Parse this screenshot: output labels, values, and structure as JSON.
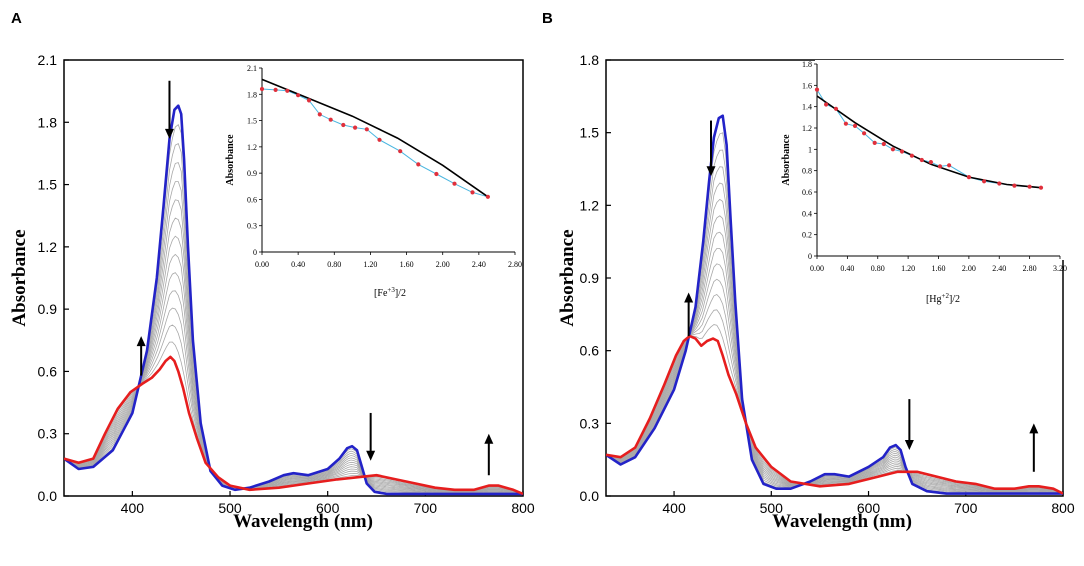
{
  "chart_data": [
    {
      "type": "line",
      "panel_label": "A",
      "xlabel": "Wavelength (nm)",
      "ylabel": "Absorbance",
      "xlim": [
        330,
        800
      ],
      "ylim": [
        0,
        2.1
      ],
      "x_ticks": [
        400,
        500,
        600,
        700,
        800
      ],
      "y_ticks": [
        0.0,
        0.3,
        0.6,
        0.9,
        1.2,
        1.5,
        1.8,
        2.1
      ],
      "x_tick_labels": [
        "400",
        "500",
        "600",
        "700",
        "800"
      ],
      "y_tick_labels": [
        "0.0",
        "0.3",
        "0.6",
        "0.9",
        "1.2",
        "1.5",
        "1.8",
        "2.1"
      ],
      "series": [
        {
          "name": "initial",
          "color": "#2323c8",
          "x": [
            330,
            345,
            360,
            380,
            400,
            415,
            425,
            432,
            438,
            443,
            447,
            450,
            453,
            457,
            462,
            470,
            480,
            492,
            505,
            520,
            540,
            555,
            565,
            580,
            600,
            612,
            620,
            625,
            630,
            635,
            640,
            648,
            660,
            680,
            700,
            720,
            740,
            760,
            780,
            800
          ],
          "y": [
            0.18,
            0.13,
            0.14,
            0.22,
            0.4,
            0.7,
            1.05,
            1.4,
            1.72,
            1.86,
            1.88,
            1.84,
            1.62,
            1.2,
            0.75,
            0.35,
            0.12,
            0.05,
            0.03,
            0.04,
            0.07,
            0.1,
            0.11,
            0.1,
            0.13,
            0.18,
            0.23,
            0.24,
            0.22,
            0.14,
            0.06,
            0.02,
            0.01,
            0.01,
            0.01,
            0.01,
            0.01,
            0.01,
            0.01,
            0.01
          ]
        },
        {
          "name": "final",
          "color": "#e61e1e",
          "x": [
            330,
            345,
            360,
            372,
            385,
            398,
            410,
            420,
            428,
            434,
            439,
            443,
            447,
            452,
            458,
            466,
            475,
            488,
            500,
            520,
            550,
            580,
            610,
            630,
            650,
            670,
            690,
            710,
            730,
            750,
            765,
            775,
            790,
            800
          ],
          "y": [
            0.18,
            0.16,
            0.18,
            0.3,
            0.42,
            0.5,
            0.54,
            0.57,
            0.61,
            0.65,
            0.67,
            0.65,
            0.6,
            0.52,
            0.4,
            0.28,
            0.16,
            0.09,
            0.05,
            0.03,
            0.04,
            0.06,
            0.08,
            0.09,
            0.1,
            0.08,
            0.06,
            0.04,
            0.03,
            0.03,
            0.05,
            0.05,
            0.03,
            0.01
          ]
        }
      ],
      "intermediate_count": 13,
      "intermediate_color": "#a8a8a8",
      "arrows": [
        {
          "x": 438,
          "from": 1.72,
          "to": 2.0,
          "dir": "down"
        },
        {
          "x": 409,
          "from": 0.58,
          "to": 0.77,
          "dir": "up"
        },
        {
          "x": 644,
          "from": 0.17,
          "to": 0.4,
          "dir": "down"
        },
        {
          "x": 765,
          "from": 0.1,
          "to": 0.3,
          "dir": "up"
        }
      ],
      "inset": {
        "xlabel": "[Fe+3]/2",
        "xlabel_base": "[Fe",
        "xlabel_sup": "+3",
        "xlabel_tail": "]/2",
        "ylabel": "Absorbance",
        "xlim": [
          0,
          2.8
        ],
        "ylim": [
          0,
          2.1
        ],
        "x_ticks": [
          0,
          0.4,
          0.8,
          1.2,
          1.6,
          2.0,
          2.4,
          2.8
        ],
        "y_ticks": [
          0,
          0.3,
          0.6,
          0.9,
          1.2,
          1.5,
          1.8,
          2.1
        ],
        "x_tick_labels": [
          "0.00",
          "0.40",
          "0.80",
          "1.20",
          "1.60",
          "2.00",
          "2.40",
          "2.80"
        ],
        "y_tick_labels": [
          "0",
          "0.3",
          "0.6",
          "0.9",
          "1.2",
          "1.5",
          "1.8",
          "2.1"
        ],
        "points": {
          "x": [
            0.0,
            0.15,
            0.28,
            0.4,
            0.52,
            0.64,
            0.76,
            0.9,
            1.03,
            1.16,
            1.3,
            1.53,
            1.73,
            1.93,
            2.13,
            2.33,
            2.5
          ],
          "y": [
            1.86,
            1.85,
            1.84,
            1.79,
            1.73,
            1.57,
            1.51,
            1.45,
            1.42,
            1.4,
            1.28,
            1.15,
            1.0,
            0.89,
            0.78,
            0.68,
            0.63
          ]
        },
        "fit": {
          "x": [
            0.0,
            0.5,
            1.0,
            1.5,
            2.0,
            2.5
          ],
          "y": [
            1.97,
            1.76,
            1.55,
            1.3,
            0.99,
            0.63
          ]
        },
        "marker_color": "#e0303c",
        "connector_color": "#4ab6e0",
        "fit_color": "#000000"
      }
    },
    {
      "type": "line",
      "panel_label": "B",
      "xlabel": "Wavelength (nm)",
      "ylabel": "Absorbance",
      "xlim": [
        330,
        800
      ],
      "ylim": [
        0,
        1.8
      ],
      "x_ticks": [
        400,
        500,
        600,
        700,
        800
      ],
      "y_ticks": [
        0.0,
        0.3,
        0.6,
        0.9,
        1.2,
        1.5,
        1.8
      ],
      "x_tick_labels": [
        "400",
        "500",
        "600",
        "700",
        "800"
      ],
      "y_tick_labels": [
        "0.0",
        "0.3",
        "0.6",
        "0.9",
        "1.2",
        "1.5",
        "1.8"
      ],
      "series": [
        {
          "name": "initial",
          "color": "#2323c8",
          "x": [
            330,
            345,
            360,
            380,
            400,
            412,
            422,
            430,
            436,
            441,
            446,
            450,
            454,
            458,
            463,
            470,
            480,
            492,
            505,
            520,
            540,
            555,
            565,
            580,
            600,
            615,
            622,
            628,
            633,
            638,
            645,
            660,
            680,
            700,
            720,
            760,
            800
          ],
          "y": [
            0.17,
            0.13,
            0.16,
            0.28,
            0.44,
            0.6,
            0.78,
            1.05,
            1.3,
            1.48,
            1.56,
            1.57,
            1.45,
            1.15,
            0.8,
            0.4,
            0.15,
            0.05,
            0.03,
            0.03,
            0.06,
            0.09,
            0.09,
            0.08,
            0.12,
            0.16,
            0.2,
            0.21,
            0.19,
            0.12,
            0.05,
            0.02,
            0.01,
            0.01,
            0.01,
            0.01,
            0.01
          ]
        },
        {
          "name": "final",
          "color": "#e61e1e",
          "x": [
            330,
            345,
            360,
            375,
            390,
            402,
            410,
            416,
            422,
            428,
            434,
            440,
            445,
            450,
            456,
            464,
            474,
            484,
            500,
            520,
            550,
            580,
            610,
            630,
            650,
            670,
            690,
            710,
            730,
            750,
            765,
            775,
            790,
            800
          ],
          "y": [
            0.17,
            0.16,
            0.2,
            0.32,
            0.46,
            0.58,
            0.64,
            0.66,
            0.65,
            0.62,
            0.64,
            0.65,
            0.64,
            0.58,
            0.5,
            0.42,
            0.3,
            0.2,
            0.12,
            0.06,
            0.04,
            0.05,
            0.08,
            0.1,
            0.1,
            0.08,
            0.06,
            0.05,
            0.03,
            0.03,
            0.04,
            0.04,
            0.03,
            0.01
          ]
        }
      ],
      "intermediate_count": 13,
      "intermediate_color": "#a8a8a8",
      "arrows": [
        {
          "x": 438,
          "from": 1.32,
          "to": 1.55,
          "dir": "down"
        },
        {
          "x": 415,
          "from": 0.66,
          "to": 0.84,
          "dir": "up"
        },
        {
          "x": 642,
          "from": 0.19,
          "to": 0.4,
          "dir": "down"
        },
        {
          "x": 770,
          "from": 0.1,
          "to": 0.3,
          "dir": "up"
        }
      ],
      "inset": {
        "xlabel": "[Hg+2]/2",
        "xlabel_base": "[Hg",
        "xlabel_sup": "+2",
        "xlabel_tail": "]/2",
        "ylabel": "Absorbance",
        "xlim": [
          0,
          3.2
        ],
        "ylim": [
          0,
          1.8
        ],
        "x_ticks": [
          0,
          0.4,
          0.8,
          1.2,
          1.6,
          2.0,
          2.4,
          2.8,
          3.2
        ],
        "y_ticks": [
          0,
          0.2,
          0.4,
          0.6,
          0.8,
          1.0,
          1.2,
          1.4,
          1.6,
          1.8
        ],
        "x_tick_labels": [
          "0.00",
          "0.40",
          "0.80",
          "1.20",
          "1.60",
          "2.00",
          "2.40",
          "2.80",
          "3.20"
        ],
        "y_tick_labels": [
          "0",
          "0.2",
          "0.4",
          "0.6",
          "0.8",
          "1",
          "1.2",
          "1.4",
          "1.6",
          "1.8"
        ],
        "points": {
          "x": [
            0.0,
            0.12,
            0.25,
            0.38,
            0.5,
            0.62,
            0.76,
            0.88,
            1.0,
            1.12,
            1.25,
            1.38,
            1.5,
            1.62,
            1.74,
            2.0,
            2.2,
            2.4,
            2.6,
            2.8,
            2.95
          ],
          "y": [
            1.56,
            1.42,
            1.38,
            1.24,
            1.22,
            1.15,
            1.06,
            1.05,
            1.0,
            0.98,
            0.94,
            0.9,
            0.88,
            0.84,
            0.85,
            0.74,
            0.7,
            0.68,
            0.66,
            0.65,
            0.64
          ]
        },
        "fit": {
          "x": [
            0.0,
            0.5,
            1.0,
            1.5,
            2.0,
            2.5,
            2.95
          ],
          "y": [
            1.5,
            1.25,
            1.03,
            0.86,
            0.74,
            0.67,
            0.64
          ]
        },
        "marker_color": "#e0303c",
        "connector_color": "#4ab6e0",
        "fit_color": "#000000"
      }
    }
  ]
}
